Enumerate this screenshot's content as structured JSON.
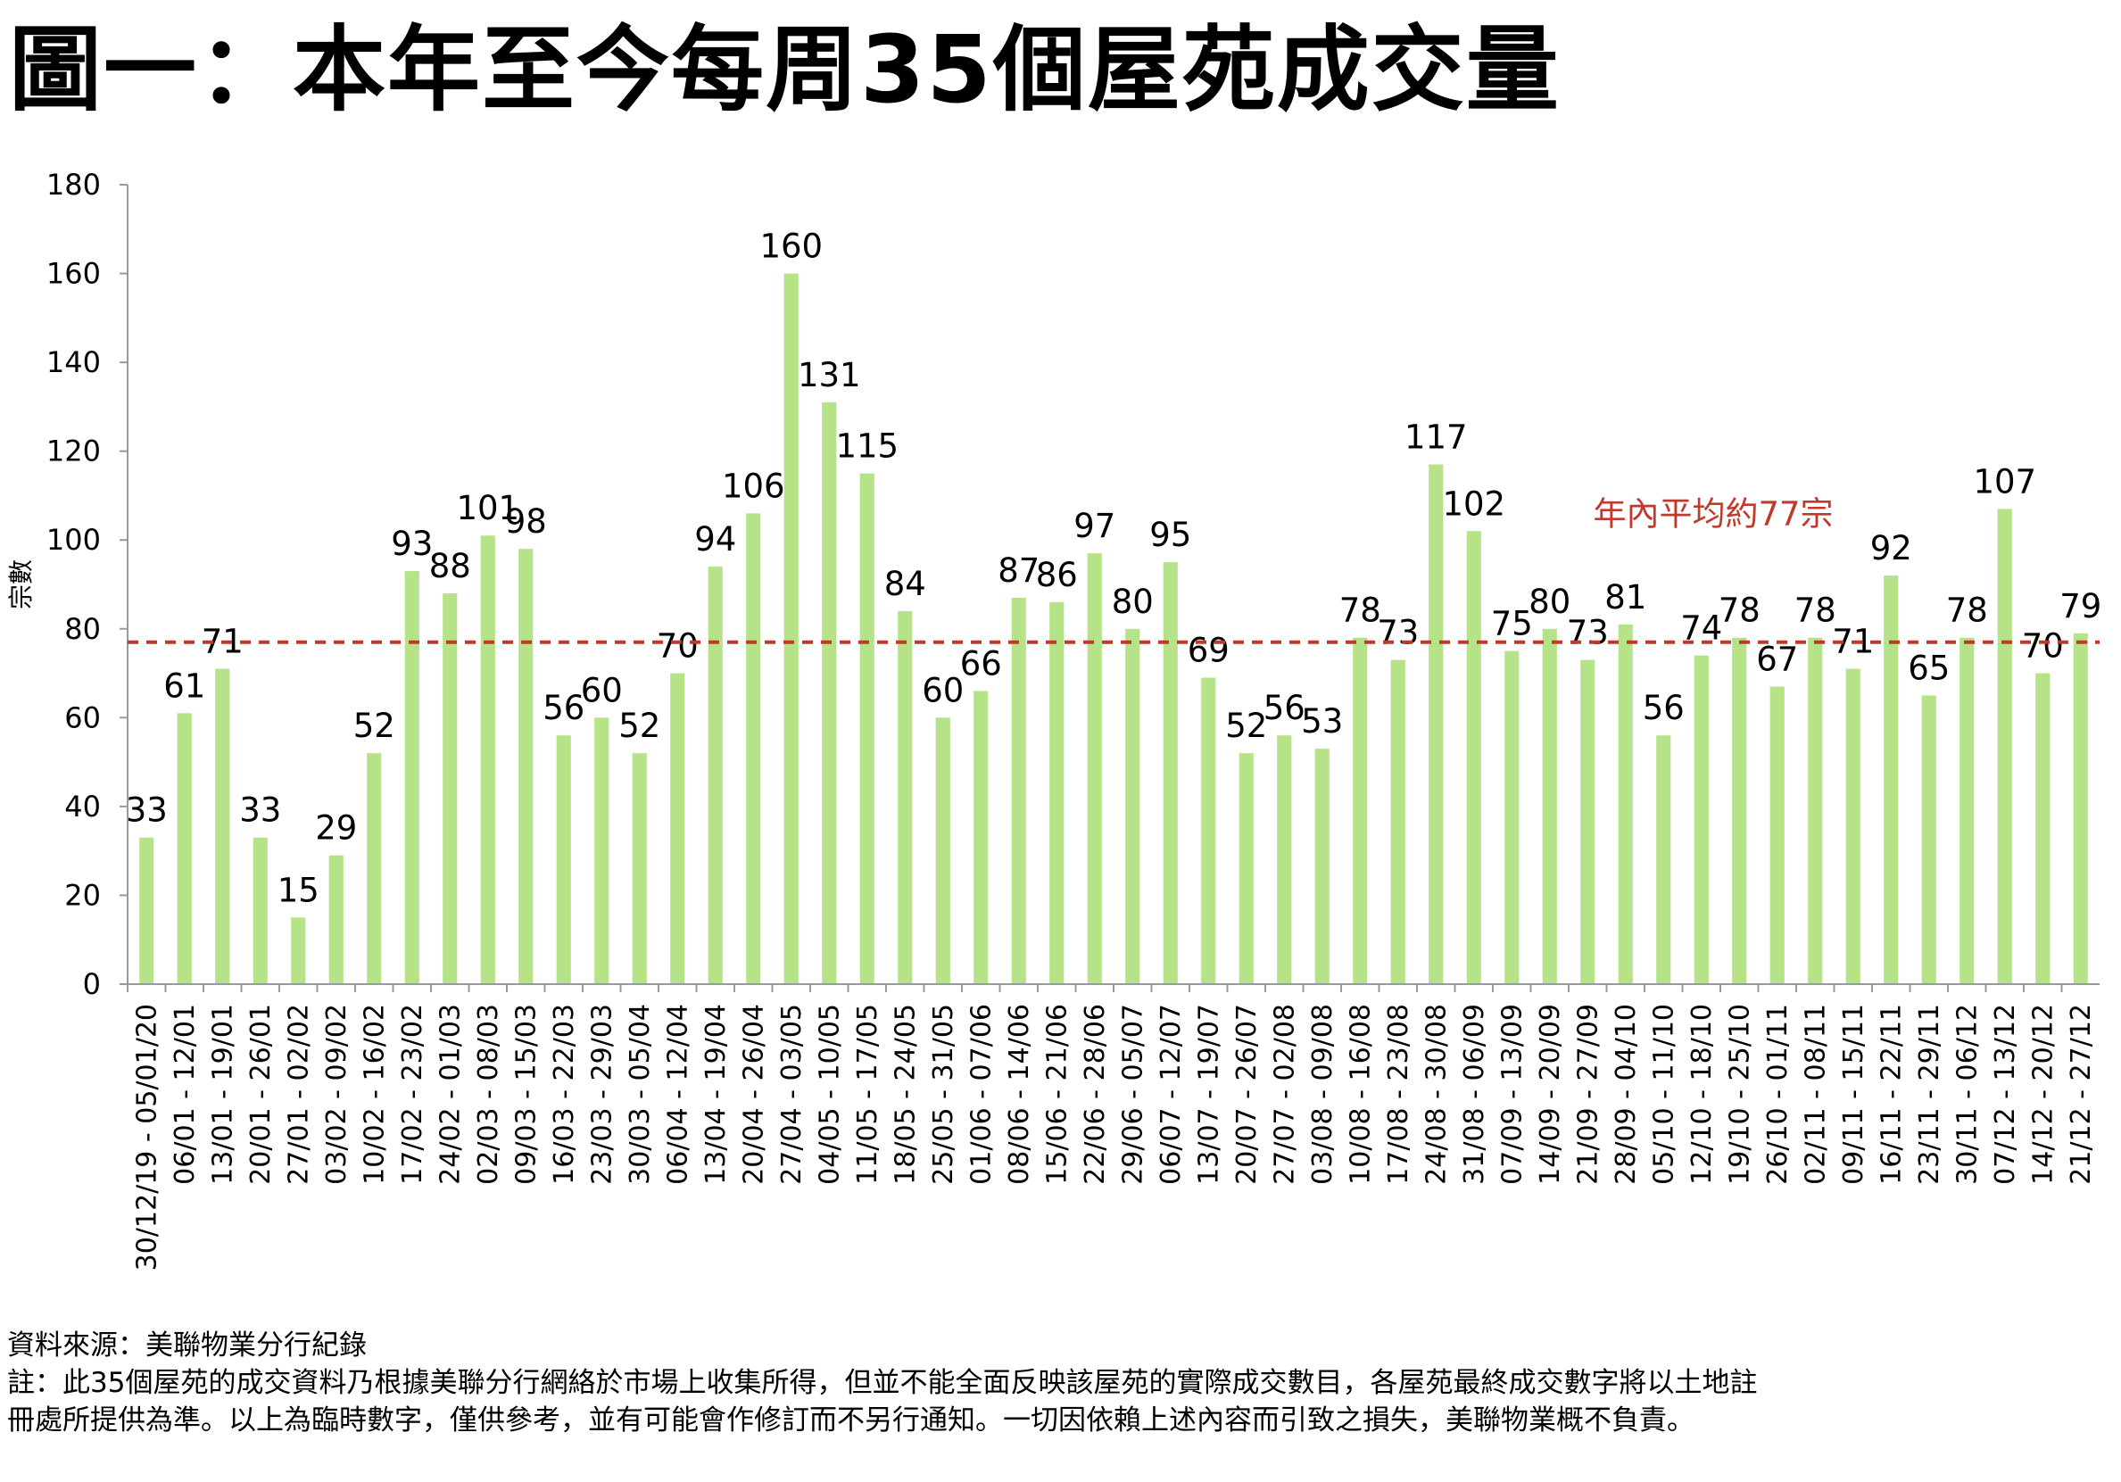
{
  "title": "圖一：本年至今每周35個屋苑成交量",
  "chart_data": {
    "type": "bar",
    "ylabel": "宗數",
    "xlabel": "",
    "ylim": [
      0,
      180
    ],
    "yticks": [
      0,
      20,
      40,
      60,
      80,
      100,
      120,
      140,
      160,
      180
    ],
    "bar_color": "#B6E388",
    "reference_line": {
      "value": 77,
      "label": "年內平均約77宗",
      "color": "#C0392B",
      "style": "dashed"
    },
    "categories": [
      "30/12/19 - 05/01/20",
      "06/01 - 12/01",
      "13/01 - 19/01",
      "20/01 - 26/01",
      "27/01 - 02/02",
      "03/02 - 09/02",
      "10/02 - 16/02",
      "17/02 - 23/02",
      "24/02 - 01/03",
      "02/03 - 08/03",
      "09/03 - 15/03",
      "16/03 - 22/03",
      "23/03 - 29/03",
      "30/03 - 05/04",
      "06/04 - 12/04",
      "13/04 - 19/04",
      "20/04 - 26/04",
      "27/04 - 03/05",
      "04/05 - 10/05",
      "11/05 - 17/05",
      "18/05 - 24/05",
      "25/05 - 31/05",
      "01/06 - 07/06",
      "08/06 - 14/06",
      "15/06 - 21/06",
      "22/06 - 28/06",
      "29/06 - 05/07",
      "06/07 - 12/07",
      "13/07 - 19/07",
      "20/07 - 26/07",
      "27/07 - 02/08",
      "03/08 - 09/08",
      "10/08 - 16/08",
      "17/08 - 23/08",
      "24/08 - 30/08",
      "31/08 - 06/09",
      "07/09 - 13/09",
      "14/09 - 20/09",
      "21/09 - 27/09",
      "28/09 - 04/10",
      "05/10 - 11/10",
      "12/10 - 18/10",
      "19/10 - 25/10",
      "26/10 - 01/11",
      "02/11 - 08/11",
      "09/11 - 15/11",
      "16/11 - 22/11",
      "23/11 - 29/11",
      "30/11 - 06/12",
      "07/12 - 13/12",
      "14/12 - 20/12",
      "21/12 - 27/12"
    ],
    "values": [
      33,
      61,
      71,
      33,
      15,
      29,
      52,
      93,
      88,
      101,
      98,
      56,
      60,
      52,
      70,
      94,
      106,
      160,
      131,
      115,
      84,
      60,
      66,
      87,
      86,
      97,
      80,
      95,
      69,
      52,
      56,
      53,
      78,
      73,
      117,
      102,
      75,
      80,
      73,
      81,
      56,
      74,
      78,
      67,
      78,
      71,
      92,
      65,
      78,
      107,
      70,
      79
    ]
  },
  "footnotes": {
    "source": "資料來源：美聯物業分行紀錄",
    "note_line1": "註：此35個屋苑的成交資料乃根據美聯分行網絡於市場上收集所得，但並不能全面反映該屋苑的實際成交數目，各屋苑最終成交數字將以土地註",
    "note_line2": "冊處所提供為準。以上為臨時數字，僅供參考，並有可能會作修訂而不另行通知。一切因依賴上述內容而引致之損失，美聯物業概不負責。"
  }
}
